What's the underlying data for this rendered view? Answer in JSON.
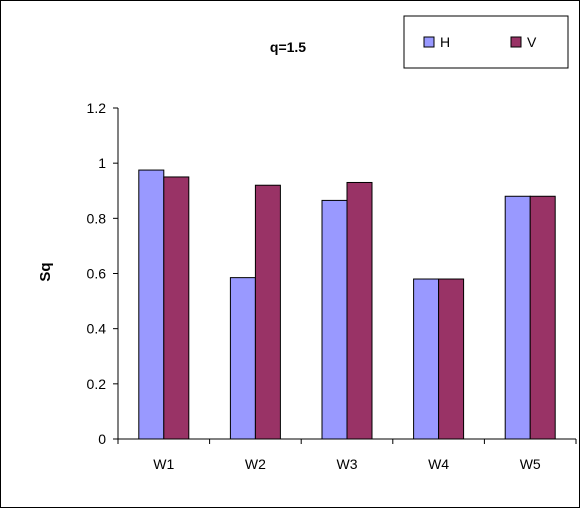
{
  "chart_data": {
    "type": "bar",
    "title": "q=1.5",
    "xlabel": "",
    "ylabel": "Sq",
    "categories": [
      "W1",
      "W2",
      "W3",
      "W4",
      "W5"
    ],
    "series": [
      {
        "name": "H",
        "color": "#9999FF",
        "values": [
          0.975,
          0.585,
          0.865,
          0.58,
          0.88
        ]
      },
      {
        "name": "V",
        "color": "#993366",
        "values": [
          0.95,
          0.92,
          0.93,
          0.58,
          0.88
        ]
      }
    ],
    "ylim": [
      0,
      1.2
    ],
    "yticks": [
      "0",
      "0.2",
      "0.4",
      "0.6",
      "0.8",
      "1",
      "1.2"
    ],
    "grid": false,
    "legend_position": "top-right"
  }
}
